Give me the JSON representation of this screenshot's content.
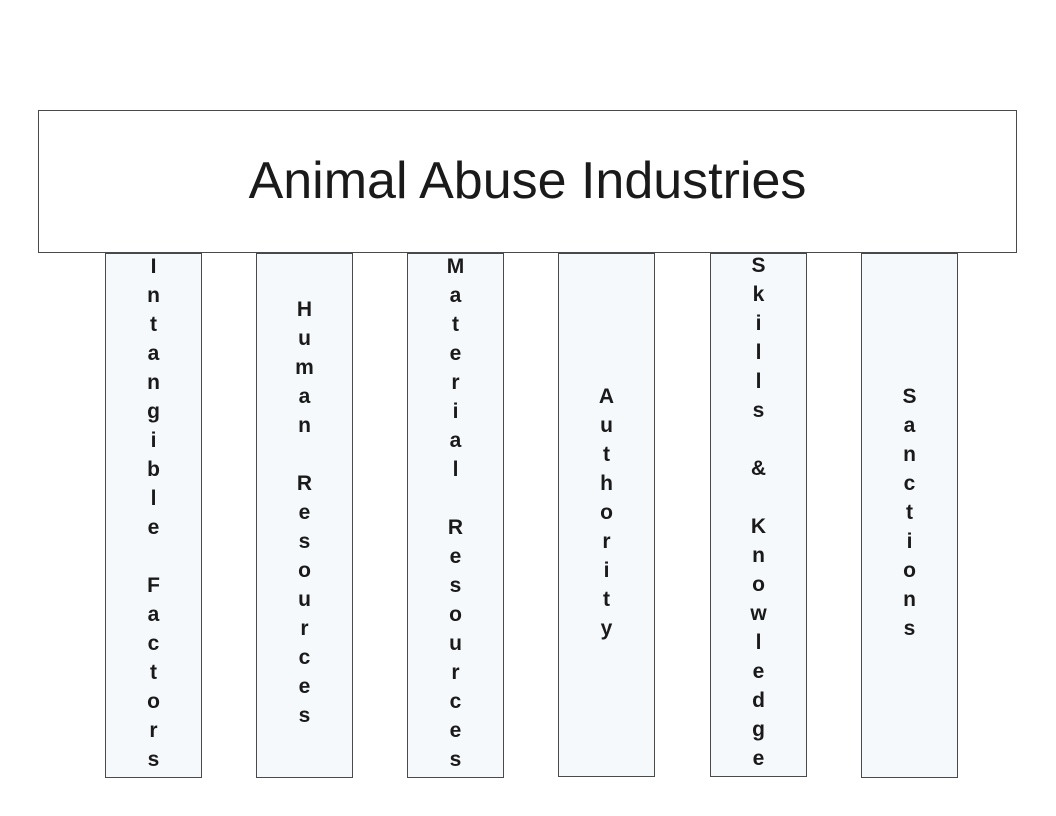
{
  "title": "Animal Abuse Industries",
  "pillars": [
    {
      "label": "Intangible Factors"
    },
    {
      "label": "Human Resources"
    },
    {
      "label": "Material Resources"
    },
    {
      "label": "Authority"
    },
    {
      "label": "Skills & Knowledge"
    },
    {
      "label": "Sanctions"
    }
  ],
  "colors": {
    "pillar_fill": "#f5f9fc",
    "border": "#4a4a4a",
    "text": "#1a1a1a"
  }
}
